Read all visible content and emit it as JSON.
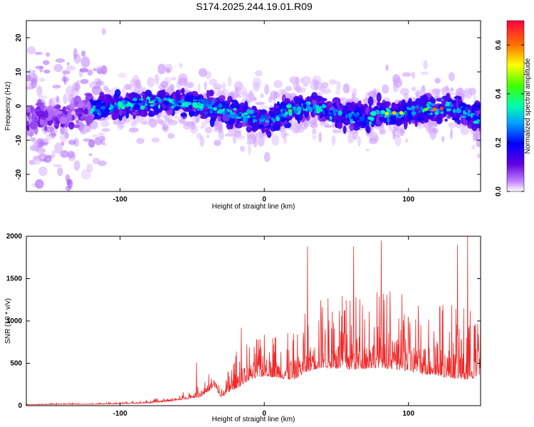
{
  "title": "S174.2025.244.19.01.R09",
  "colors": {
    "snr_line": "#ee2b2b",
    "axis": "#000000"
  },
  "chart_data": [
    {
      "type": "heatmap",
      "title": "S174.2025.244.19.01.R09",
      "xlabel": "Height of straight line (km)",
      "ylabel": "Frequency (Hz)",
      "xlim": [
        -165,
        150
      ],
      "ylim": [
        -25,
        25
      ],
      "x_ticks": [
        -100,
        0,
        100
      ],
      "x_tick_labels": [
        "-100",
        "0",
        "100"
      ],
      "y_ticks": [
        -20,
        -10,
        0,
        10,
        20
      ],
      "y_tick_labels": [
        "-20",
        "-10",
        "0",
        "10",
        "20"
      ],
      "colorbar": {
        "label": "Normalized spectral amplitude",
        "range": [
          0.0,
          0.7
        ],
        "ticks": [
          0.0,
          0.2,
          0.4,
          0.6
        ],
        "tick_labels": [
          "0.0",
          "0.2",
          "0.4",
          "0.6"
        ]
      },
      "ridge_center_hz": {
        "x": [
          -165,
          -140,
          -120,
          -100,
          -80,
          -60,
          -40,
          -20,
          0,
          10,
          20,
          30,
          50,
          70,
          90,
          100,
          110,
          120,
          130,
          150
        ],
        "y": [
          -3,
          -3,
          -1,
          0,
          1,
          1,
          0,
          -2,
          -4,
          -3,
          -1,
          0,
          -2,
          -3,
          -2,
          -2,
          -1,
          -1,
          0,
          -4
        ]
      },
      "peak_amplitude": 0.65
    },
    {
      "type": "line",
      "xlabel": "Height of straight line (km)",
      "ylabel": "SNR (10 * v/v)",
      "xlim": [
        -165,
        150
      ],
      "ylim": [
        0,
        2000
      ],
      "x_ticks": [
        -100,
        0,
        100
      ],
      "x_tick_labels": [
        "-100",
        "0",
        "100"
      ],
      "y_ticks": [
        0,
        500,
        1000,
        1500,
        2000
      ],
      "y_tick_labels": [
        "0",
        "500",
        "1000",
        "1500",
        "2000"
      ],
      "envelope": {
        "x": [
          -165,
          -140,
          -120,
          -100,
          -80,
          -60,
          -50,
          -45,
          -40,
          -35,
          -30,
          -25,
          -20,
          -10,
          0,
          10,
          20,
          30,
          40,
          60,
          80,
          100,
          120,
          140,
          150
        ],
        "base": [
          10,
          15,
          15,
          20,
          30,
          60,
          90,
          100,
          150,
          220,
          100,
          150,
          200,
          300,
          350,
          330,
          300,
          400,
          450,
          420,
          450,
          400,
          350,
          300,
          350
        ],
        "spread": [
          10,
          15,
          15,
          25,
          40,
          80,
          120,
          150,
          200,
          250,
          100,
          300,
          450,
          500,
          550,
          550,
          550,
          750,
          850,
          900,
          950,
          900,
          900,
          900,
          850
        ]
      },
      "notable_peaks": [
        {
          "x": 30,
          "y": 1880
        },
        {
          "x": 62,
          "y": 1880
        },
        {
          "x": 81,
          "y": 1950
        },
        {
          "x": 134,
          "y": 1900
        },
        {
          "x": 141,
          "y": 2000
        },
        {
          "x": -16,
          "y": 920
        },
        {
          "x": -47,
          "y": 510
        }
      ]
    }
  ]
}
